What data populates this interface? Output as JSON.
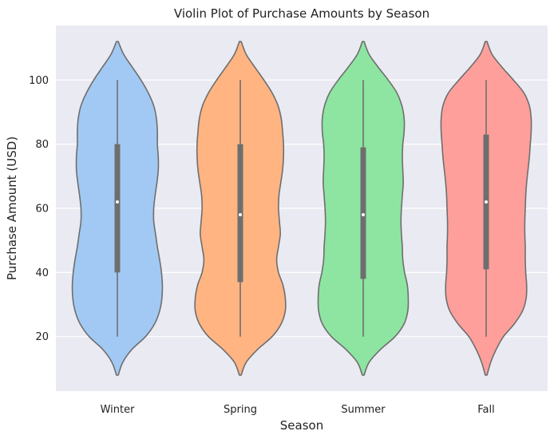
{
  "chart_data": {
    "type": "violin",
    "title": "Violin Plot of Purchase Amounts by Season",
    "xlabel": "Season",
    "ylabel": "Purchase Amount (USD)",
    "categories": [
      "Winter",
      "Spring",
      "Summer",
      "Fall"
    ],
    "ylim": [
      3,
      117
    ],
    "yticks": [
      20,
      40,
      60,
      80,
      100
    ],
    "grid": true,
    "background": "#eaeaf2",
    "colors": [
      "#a1c9f4",
      "#ffb482",
      "#8de5a1",
      "#ff9f9b"
    ],
    "violins": [
      {
        "category": "Winter",
        "min": 20,
        "q1": 40,
        "median": 62,
        "q3": 80,
        "max": 100,
        "density_y": [
          8,
          12,
          16,
          20,
          24,
          28,
          32,
          36,
          40,
          44,
          48,
          52,
          56,
          60,
          64,
          68,
          72,
          76,
          80,
          84,
          88,
          92,
          96,
          100,
          104,
          108,
          112
        ],
        "density_w": [
          0.02,
          0.12,
          0.32,
          0.62,
          0.82,
          0.93,
          0.98,
          0.99,
          0.97,
          0.93,
          0.88,
          0.84,
          0.8,
          0.8,
          0.83,
          0.87,
          0.9,
          0.9,
          0.88,
          0.88,
          0.86,
          0.8,
          0.68,
          0.52,
          0.33,
          0.14,
          0.02
        ]
      },
      {
        "category": "Spring",
        "min": 20,
        "q1": 37,
        "median": 58,
        "q3": 80,
        "max": 100,
        "density_y": [
          8,
          12,
          16,
          20,
          24,
          28,
          32,
          36,
          40,
          44,
          48,
          52,
          56,
          60,
          64,
          68,
          72,
          76,
          80,
          84,
          88,
          92,
          96,
          100,
          104,
          108,
          112
        ],
        "density_w": [
          0.02,
          0.13,
          0.38,
          0.7,
          0.9,
          0.99,
          0.99,
          0.94,
          0.84,
          0.8,
          0.84,
          0.88,
          0.86,
          0.84,
          0.85,
          0.89,
          0.93,
          0.95,
          0.95,
          0.93,
          0.9,
          0.83,
          0.7,
          0.52,
          0.32,
          0.13,
          0.02
        ]
      },
      {
        "category": "Summer",
        "min": 20,
        "q1": 38,
        "median": 58,
        "q3": 79,
        "max": 100,
        "density_y": [
          8,
          12,
          16,
          20,
          24,
          28,
          32,
          36,
          40,
          44,
          48,
          52,
          56,
          60,
          64,
          68,
          72,
          76,
          80,
          84,
          88,
          92,
          96,
          100,
          104,
          108,
          112
        ],
        "density_w": [
          0.02,
          0.13,
          0.38,
          0.7,
          0.9,
          0.98,
          0.99,
          0.97,
          0.91,
          0.87,
          0.86,
          0.84,
          0.83,
          0.84,
          0.86,
          0.88,
          0.87,
          0.86,
          0.87,
          0.9,
          0.9,
          0.85,
          0.74,
          0.55,
          0.33,
          0.13,
          0.02
        ]
      },
      {
        "category": "Fall",
        "min": 20,
        "q1": 41,
        "median": 62,
        "q3": 83,
        "max": 100,
        "density_y": [
          8,
          12,
          16,
          20,
          24,
          28,
          32,
          36,
          40,
          44,
          48,
          52,
          56,
          60,
          64,
          68,
          72,
          76,
          80,
          84,
          88,
          92,
          96,
          100,
          104,
          108,
          112
        ],
        "density_w": [
          0.02,
          0.1,
          0.22,
          0.38,
          0.62,
          0.8,
          0.88,
          0.89,
          0.87,
          0.86,
          0.86,
          0.85,
          0.85,
          0.86,
          0.87,
          0.89,
          0.92,
          0.95,
          0.97,
          0.99,
          0.99,
          0.95,
          0.83,
          0.6,
          0.35,
          0.13,
          0.02
        ]
      }
    ]
  }
}
